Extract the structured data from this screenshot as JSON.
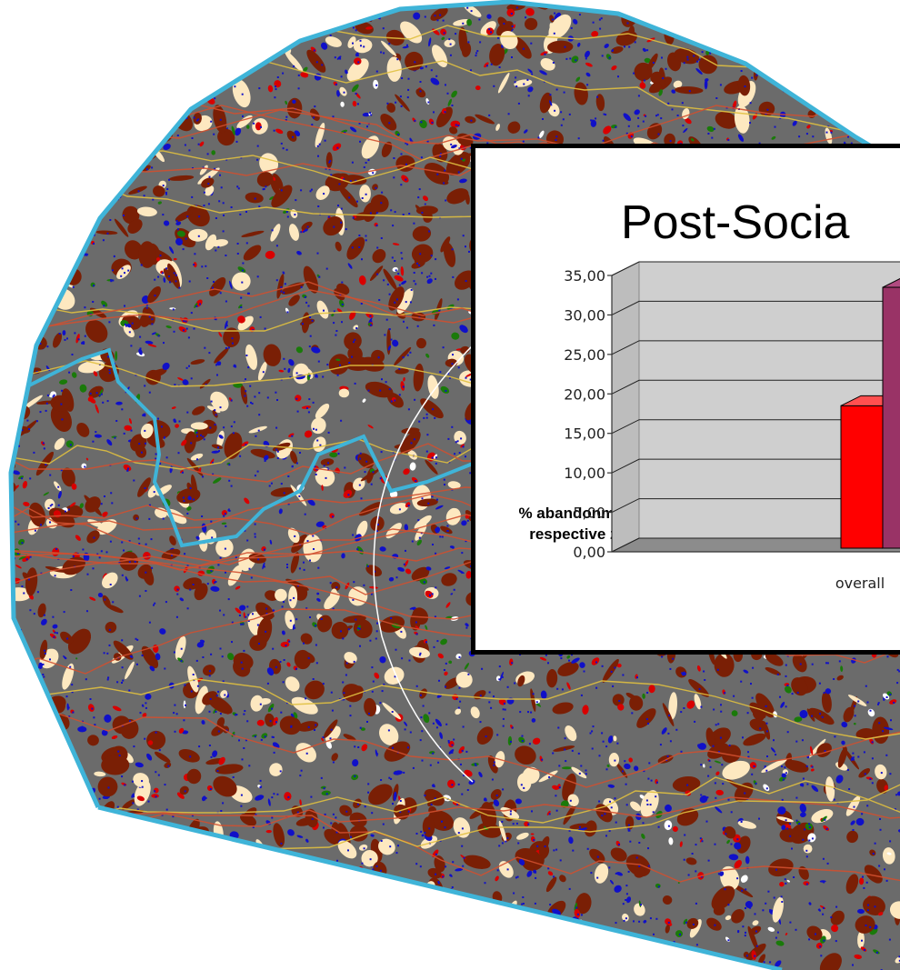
{
  "slide": {
    "title": "Post-Socia"
  },
  "chart_data": {
    "type": "bar",
    "ylabel": "% abandonment in respective zone",
    "xlabel": "",
    "ylim": [
      0,
      35
    ],
    "yticks": [
      "0,00",
      "5,00",
      "10,00",
      "15,00",
      "20,00",
      "25,00",
      "30,00",
      "35,00"
    ],
    "categories": [
      "overall",
      ""
    ],
    "values": [
      18.5,
      33.5
    ],
    "colors": [
      "#ff0000",
      "#993366"
    ],
    "grid": true,
    "legend": "none",
    "style": "3d"
  },
  "map": {
    "background": "#6b6b6b",
    "border_color": "#3fb4d8",
    "class_colors": [
      "#7a1f05",
      "#d80000",
      "#1a7a0a",
      "#1010c8",
      "#fde8c0",
      "#ffffff"
    ],
    "line_colors": [
      "#e0c040",
      "#d05030",
      "#3fb4d8",
      "#ffffff"
    ]
  }
}
